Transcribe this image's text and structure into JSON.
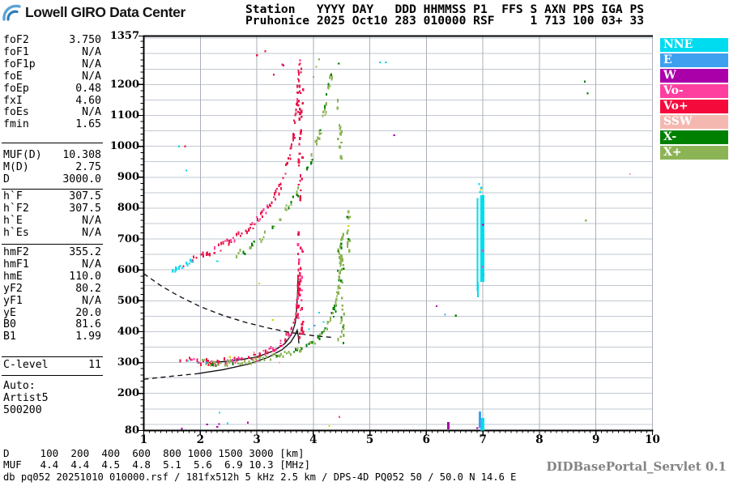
{
  "header": {
    "logo_text": "Lowell GIRO Data Center",
    "line1": "Station   YYYY DAY   DDD HHMMSS P1  FFS S AXN PPS IGA PS",
    "line2": "Pruhonice 2025 Oct10 283 010000 RSF     1 713 100 03+ 33"
  },
  "params": {
    "sections": [
      {
        "rows": [
          [
            "foF2",
            "3.750"
          ],
          [
            "foF1",
            "N/A"
          ],
          [
            "foF1p",
            "N/A"
          ],
          [
            "foE",
            "N/A"
          ],
          [
            "foEp",
            "0.48"
          ],
          [
            "fxI",
            "4.60"
          ],
          [
            "foEs",
            "N/A"
          ],
          [
            "fmin",
            "1.65"
          ]
        ]
      },
      {
        "rows": [
          [
            "MUF(D)",
            "10.308"
          ],
          [
            "M(D)",
            "2.75"
          ],
          [
            "D",
            "3000.0"
          ]
        ]
      },
      {
        "rows": [
          [
            "h`F",
            "307.5"
          ],
          [
            "h`F2",
            "307.5"
          ],
          [
            "h`E",
            "N/A"
          ],
          [
            "h`Es",
            "N/A"
          ]
        ]
      },
      {
        "rows": [
          [
            "hmF2",
            "355.2"
          ],
          [
            "hmF1",
            "N/A"
          ],
          [
            "hmE",
            "110.0"
          ],
          [
            "yF2",
            "80.2"
          ],
          [
            "yF1",
            "N/A"
          ],
          [
            "yE",
            "20.0"
          ],
          [
            "B0",
            "81.6"
          ],
          [
            "B1",
            "1.99"
          ]
        ]
      },
      {
        "rows": [
          [
            "C-level",
            "11"
          ]
        ]
      }
    ],
    "auto_lines": [
      "Auto:",
      "Artist5",
      "500200"
    ]
  },
  "legend": {
    "items": [
      {
        "label": "NNE",
        "color": "#00DCEF"
      },
      {
        "label": "E",
        "color": "#3FA0F0"
      },
      {
        "label": "W",
        "color": "#AA00AA"
      },
      {
        "label": "Vo-",
        "color": "#FF3FA0"
      },
      {
        "label": "Vo+",
        "color": "#F50A3C"
      },
      {
        "label": "SSW",
        "color": "#F4B8B0"
      },
      {
        "label": "X-",
        "color": "#008000"
      },
      {
        "label": "X+",
        "color": "#8CB455"
      }
    ]
  },
  "footer": {
    "d_row": "D     100  200  400  600  800 1000 1500 3000 [km]",
    "muf_row": "MUF   4.4  4.4  4.5  4.8  5.1  5.6  6.9 10.3 [MHz]",
    "status": "db pq052 20251010 010000.rsf / 181fx512h 5 kHz 2.5 km / DPS-4D PQ052 50 / 50.0 N 14.6 E",
    "servlet": "DIDBasePortal_Servlet 0.1"
  },
  "chart_data": {
    "type": "scatter",
    "title": "Pruhonice ionogram 2025 Oct10 283 010000",
    "xlabel": "[MHz]",
    "ylabel": "[km]",
    "xlim": [
      1,
      10
    ],
    "ylim": [
      80,
      1357
    ],
    "x_ticks": [
      1,
      2,
      3,
      4,
      5,
      6,
      7,
      8,
      9,
      10
    ],
    "y_ticks": [
      1357,
      1200,
      1100,
      1000,
      900,
      800,
      700,
      600,
      500,
      400,
      300,
      200,
      80
    ],
    "grid": {
      "x_step_mhz": 1,
      "y_step_km": 50,
      "on": true
    },
    "legend_position": "right",
    "colors": {
      "NNE": "#00DCEF",
      "E": "#3FA0F0",
      "W": "#AA00AA",
      "Vo-": "#FF3FA0",
      "Vo+": "#E8174B",
      "SSW": "#F4B8B0",
      "X-": "#008000",
      "X+": "#8CB455",
      "yellow": "#D6D400",
      "grid": "#C2C9D2",
      "vgrid": "#A9AFB9",
      "axis": "#000000"
    },
    "traces": [
      {
        "name": "O-trace 1st hop",
        "color": "Vo+",
        "mix": [
          "Vo+",
          "Vo+",
          "Vo+",
          "Vo+",
          "Vo-"
        ],
        "skip": 0.3,
        "spread": 3.5,
        "points": [
          [
            1.62,
            311
          ],
          [
            1.8,
            306
          ],
          [
            2.0,
            303
          ],
          [
            2.2,
            302
          ],
          [
            2.45,
            305
          ],
          [
            2.7,
            311
          ],
          [
            3.0,
            324
          ],
          [
            3.2,
            338
          ],
          [
            3.38,
            356
          ],
          [
            3.5,
            376
          ],
          [
            3.6,
            400
          ],
          [
            3.66,
            430
          ],
          [
            3.7,
            465
          ],
          [
            3.72,
            510
          ],
          [
            3.735,
            565
          ],
          [
            3.74,
            620
          ]
        ]
      },
      {
        "name": "X-trace 1st hop",
        "color": "X+",
        "mix": [
          "X+",
          "X+",
          "X+",
          "X+",
          "X-"
        ],
        "skip": 0.35,
        "spread": 3.5,
        "points": [
          [
            2.05,
            301
          ],
          [
            2.3,
            297
          ],
          [
            2.6,
            299
          ],
          [
            2.9,
            306
          ],
          [
            3.2,
            315
          ],
          [
            3.5,
            328
          ],
          [
            3.75,
            343
          ],
          [
            3.95,
            362
          ],
          [
            4.1,
            384
          ],
          [
            4.22,
            412
          ],
          [
            4.32,
            448
          ],
          [
            4.4,
            495
          ],
          [
            4.45,
            550
          ],
          [
            4.48,
            610
          ],
          [
            4.5,
            655
          ]
        ]
      },
      {
        "name": "O-trace 2nd hop",
        "color": "Vo+",
        "mix": [
          "Vo+",
          "Vo+",
          "Vo+",
          "Vo-"
        ],
        "skip": 0.45,
        "spread": 4,
        "points": [
          [
            1.85,
            634
          ],
          [
            2.05,
            650
          ],
          [
            2.3,
            670
          ],
          [
            2.6,
            700
          ],
          [
            2.9,
            742
          ],
          [
            3.15,
            792
          ],
          [
            3.35,
            852
          ],
          [
            3.52,
            930
          ],
          [
            3.63,
            1020
          ],
          [
            3.7,
            1120
          ],
          [
            3.74,
            1215
          ],
          [
            3.76,
            1285
          ]
        ]
      },
      {
        "name": "X-trace 2nd hop",
        "color": "X+",
        "mix": [
          "X+",
          "X+",
          "X+",
          "X-"
        ],
        "skip": 0.5,
        "spread": 4,
        "points": [
          [
            2.62,
            648
          ],
          [
            2.9,
            678
          ],
          [
            3.2,
            722
          ],
          [
            3.5,
            788
          ],
          [
            3.75,
            866
          ],
          [
            3.95,
            952
          ],
          [
            4.1,
            1040
          ],
          [
            4.2,
            1125
          ],
          [
            4.28,
            1205
          ],
          [
            4.33,
            1262
          ]
        ]
      },
      {
        "name": "low multiple cluster",
        "color": "NNE",
        "skip": 0.3,
        "spread": 2,
        "points": [
          [
            1.5,
            596
          ],
          [
            1.6,
            604
          ],
          [
            1.7,
            613
          ],
          [
            1.8,
            624
          ],
          [
            1.88,
            633
          ]
        ]
      }
    ],
    "columns": [
      {
        "name": "foF2 cusp column O1",
        "color": "Vo+",
        "mix": [
          "Vo+",
          "Vo+",
          "Vo+",
          "Vo-"
        ],
        "f": 3.75,
        "w": 7,
        "h1": 380,
        "h2": 725,
        "density": 0.62
      },
      {
        "name": "fxI cusp column X1",
        "color": "X+",
        "mix": [
          "X+",
          "X+",
          "X+",
          "X-"
        ],
        "f": 4.47,
        "w": 8,
        "h1": 360,
        "h2": 720,
        "density": 0.55
      },
      {
        "name": "X1 upper wisp",
        "color": "X+",
        "f": 4.6,
        "w": 4,
        "h1": 640,
        "h2": 800,
        "density": 0.35
      },
      {
        "name": "O2 cusp column",
        "color": "Vo+",
        "f": 3.76,
        "w": 6,
        "h1": 830,
        "h2": 1200,
        "density": 0.45
      },
      {
        "name": "X2 cusp column",
        "color": "X+",
        "f": 4.45,
        "w": 6,
        "h1": 950,
        "h2": 1160,
        "density": 0.4
      }
    ],
    "bars": [
      {
        "name": "interference strip thin",
        "color": "NNE",
        "f": 6.905,
        "w": 2,
        "h1": 532,
        "h2": 832
      },
      {
        "name": "interference strip thick",
        "color": "NNE",
        "f": 6.99,
        "w": 5,
        "h1": 561,
        "h2": 842
      },
      {
        "name": "interference tail",
        "color": "NNE",
        "f": 6.912,
        "w": 2,
        "h1": 512,
        "h2": 560
      },
      {
        "name": "interference bottom cyan",
        "color": "NNE",
        "f": 6.99,
        "w": 5,
        "h1": 80,
        "h2": 120
      },
      {
        "name": "interference bottom blue",
        "color": "E",
        "f": 6.945,
        "w": 3,
        "h1": 88,
        "h2": 142
      },
      {
        "name": "bottom magenta bar",
        "color": "W",
        "f": 6.39,
        "w": 3,
        "h1": 84,
        "h2": 107
      }
    ],
    "curves": [
      {
        "name": "MUF transmission curve",
        "style": "dashed",
        "points": [
          [
            1.0,
            588
          ],
          [
            1.3,
            549
          ],
          [
            1.6,
            517
          ],
          [
            2.0,
            481
          ],
          [
            2.4,
            453
          ],
          [
            2.8,
            430
          ],
          [
            3.2,
            412
          ],
          [
            3.6,
            397
          ],
          [
            4.0,
            387
          ],
          [
            4.35,
            381
          ]
        ]
      },
      {
        "name": "profile extrapolated",
        "style": "dashed",
        "points": [
          [
            1.0,
            246
          ],
          [
            1.45,
            255
          ],
          [
            1.95,
            264
          ]
        ]
      },
      {
        "name": "profile",
        "style": "solid",
        "points": [
          [
            1.95,
            264
          ],
          [
            2.4,
            277
          ],
          [
            2.85,
            295
          ],
          [
            3.2,
            317
          ],
          [
            3.45,
            342
          ],
          [
            3.6,
            366
          ],
          [
            3.68,
            390
          ],
          [
            3.715,
            405
          ],
          [
            3.735,
            385
          ],
          [
            3.745,
            362
          ]
        ]
      },
      {
        "name": "ARTIST fitted O-trace",
        "style": "solid",
        "points": [
          [
            2.1,
            299
          ],
          [
            2.6,
            306
          ],
          [
            3.0,
            318
          ],
          [
            3.3,
            338
          ],
          [
            3.5,
            362
          ],
          [
            3.62,
            392
          ],
          [
            3.68,
            428
          ],
          [
            3.705,
            470
          ],
          [
            3.72,
            520
          ],
          [
            3.728,
            572
          ]
        ]
      }
    ],
    "noise": [
      [
        "NNE",
        1.78,
        306
      ],
      [
        "NNE",
        1.95,
        299
      ],
      [
        "NNE",
        2.34,
        138
      ],
      [
        "NNE",
        2.48,
        103
      ],
      [
        "NNE",
        5.18,
        1272
      ],
      [
        "NNE",
        5.28,
        1272
      ],
      [
        "NNE",
        3.92,
        408
      ],
      [
        "NNE",
        4.1,
        462
      ],
      [
        "NNE",
        4.18,
        432
      ],
      [
        "NNE",
        1.62,
        1000
      ],
      [
        "NNE",
        1.75,
        922
      ],
      [
        "NNE",
        2.3,
        628
      ],
      [
        "NNE",
        6.95,
        852
      ],
      [
        "NNE",
        6.97,
        866
      ],
      [
        "NNE",
        6.93,
        878
      ],
      [
        "E",
        2.1,
        300
      ],
      [
        "E",
        2.62,
        309
      ],
      [
        "E",
        6.33,
        455
      ],
      [
        "E",
        4.02,
        420
      ],
      [
        "E",
        7.01,
        584
      ],
      [
        "W",
        2.12,
        100
      ],
      [
        "W",
        5.43,
        1036
      ],
      [
        "W",
        6.18,
        483
      ],
      [
        "W",
        3.47,
        1262
      ],
      [
        "W",
        1.67,
        86
      ],
      [
        "W",
        2.3,
        92
      ],
      [
        "W",
        2.33,
        101
      ],
      [
        "W",
        2.84,
        106
      ],
      [
        "W",
        6.9,
        88
      ],
      [
        "W",
        7.0,
        746
      ],
      [
        "Vo-",
        3.42,
        362
      ],
      [
        "Vo-",
        4.46,
        124
      ],
      [
        "Vo-",
        3.0,
        306
      ],
      [
        "Vo-",
        2.62,
        300
      ],
      [
        "Vo-",
        7.0,
        662
      ],
      [
        "Vo-",
        6.99,
        610
      ],
      [
        "SSW",
        9.6,
        910
      ],
      [
        "SSW",
        2.95,
        331
      ],
      [
        "SSW",
        3.4,
        300
      ],
      [
        "X-",
        4.45,
        1268
      ],
      [
        "X-",
        4.6,
        772
      ],
      [
        "X-",
        6.52,
        452
      ],
      [
        "X-",
        8.8,
        1210
      ],
      [
        "X-",
        8.85,
        1172
      ],
      [
        "X-",
        4.62,
        700
      ],
      [
        "yellow",
        3.04,
        556
      ],
      [
        "yellow",
        3.28,
        438
      ],
      [
        "yellow",
        4.28,
        95
      ],
      [
        "yellow",
        4.62,
        742
      ],
      [
        "yellow",
        2.52,
        318
      ],
      [
        "yellow",
        6.96,
        860
      ],
      [
        "Vo+",
        1.73,
        1000
      ],
      [
        "Vo+",
        3.0,
        1295
      ],
      [
        "Vo+",
        3.15,
        1308
      ],
      [
        "Vo+",
        2.25,
        655
      ],
      [
        "Vo+",
        1.7,
        612
      ],
      [
        "Vo+",
        3.3,
        1232
      ],
      [
        "Vo+",
        3.45,
        1265
      ],
      [
        "X+",
        8.82,
        760
      ],
      [
        "X+",
        4.0,
        1225
      ],
      [
        "X+",
        4.1,
        1282
      ],
      [
        "X+",
        2.2,
        302
      ],
      [
        "X+",
        4.05,
        1258
      ]
    ]
  }
}
